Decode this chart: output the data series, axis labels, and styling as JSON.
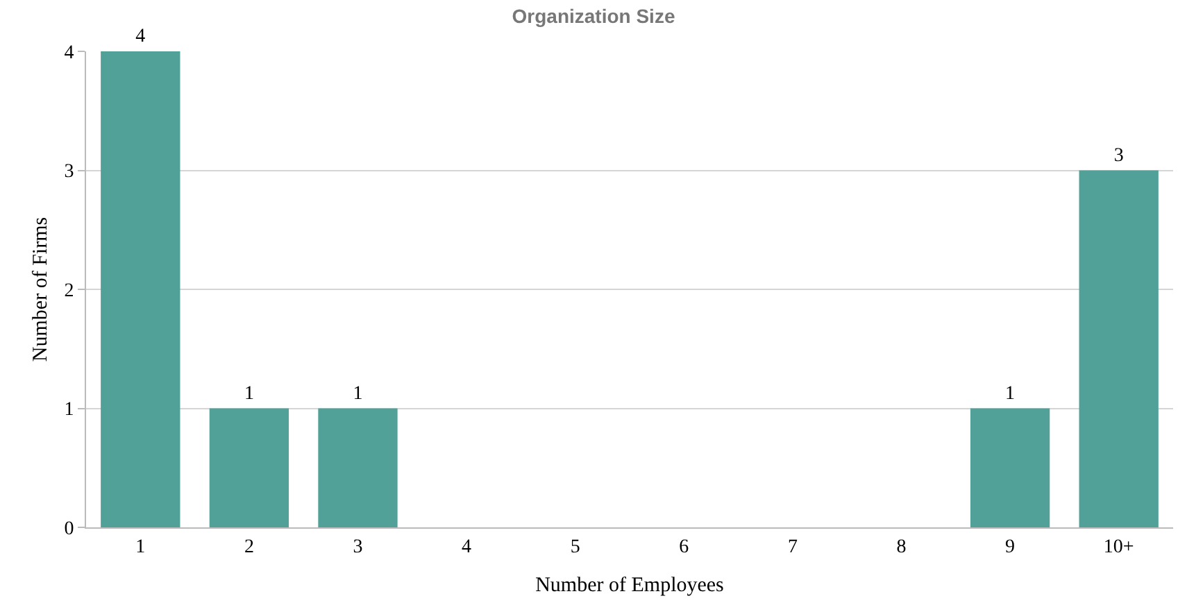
{
  "chart_data": {
    "type": "bar",
    "title": "Organization Size",
    "xlabel": "Number of Employees",
    "ylabel": "Number of Firms",
    "categories": [
      "1",
      "2",
      "3",
      "4",
      "5",
      "6",
      "7",
      "8",
      "9",
      "10+"
    ],
    "values": [
      4,
      1,
      1,
      0,
      0,
      0,
      0,
      0,
      1,
      3
    ],
    "value_labels": [
      "4",
      "1",
      "1",
      null,
      null,
      null,
      null,
      null,
      "1",
      "3"
    ],
    "color": "#52a199",
    "ylim": [
      0,
      4
    ],
    "yticks": [
      0,
      1,
      2,
      3,
      4
    ],
    "grid": "y",
    "legend": false
  }
}
